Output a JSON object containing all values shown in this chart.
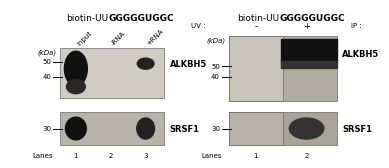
{
  "background_color": "#f5f5f0",
  "left_title": "biotin-UU",
  "left_title_bold": "GGGGGUGGC",
  "right_title": "biotin-UU",
  "right_title_bold": "GGGGGUGGC",
  "left_lane_labels": [
    "Input",
    "-RNA",
    "+RNA"
  ],
  "left_bottom_labels": [
    "1",
    "2",
    "3"
  ],
  "right_lane_labels": [
    "-",
    "+"
  ],
  "right_bottom_labels": [
    "1",
    "2"
  ],
  "left_band1_label": "ALKBH5",
  "left_band2_label": "SRSF1",
  "right_band1_label": "ALKBH5",
  "right_band2_label": "SRSF1",
  "uv_label": "UV :",
  "ip_label": "IP :",
  "kdal_label": "(kDa)",
  "left_markers_top": [
    "50",
    "40"
  ],
  "left_markers_bottom": [
    "30"
  ],
  "right_markers_top": [
    "50",
    "40"
  ],
  "right_markers_bottom": [
    "30"
  ],
  "gel_light": "#c8c4bc",
  "gel_medium": "#b8b4ac",
  "gel_dark": "#a8a49c",
  "gel_lighter": "#d0ccc4",
  "gel_right_top": "#b0aca4",
  "gel_right_bot": "#a8a49c",
  "fontsize_title": 6.5,
  "fontsize_marker": 5.0,
  "fontsize_band": 6.0,
  "fontsize_lane": 5.0,
  "fontsize_kda": 5.0
}
